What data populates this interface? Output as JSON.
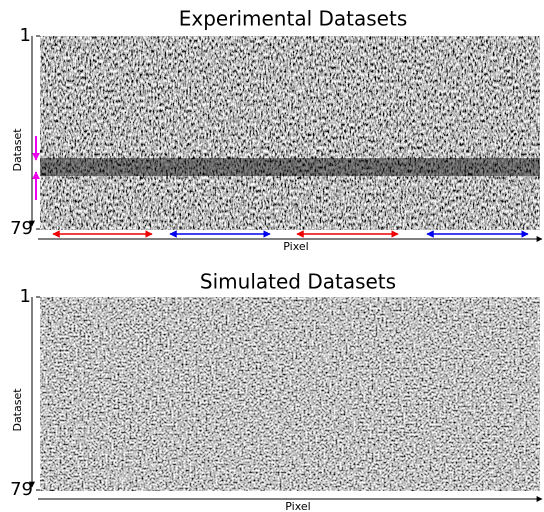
{
  "panels": [
    {
      "title": "Experimental Datasets",
      "y_axis": {
        "label": "Dataset",
        "ticks": [
          1,
          79
        ]
      },
      "x_axis": {
        "label": "Pixel"
      }
    },
    {
      "title": "Simulated Datasets",
      "y_axis": {
        "label": "Dataset",
        "ticks": [
          1,
          79
        ]
      },
      "x_axis": {
        "label": "Pixel"
      }
    }
  ]
}
